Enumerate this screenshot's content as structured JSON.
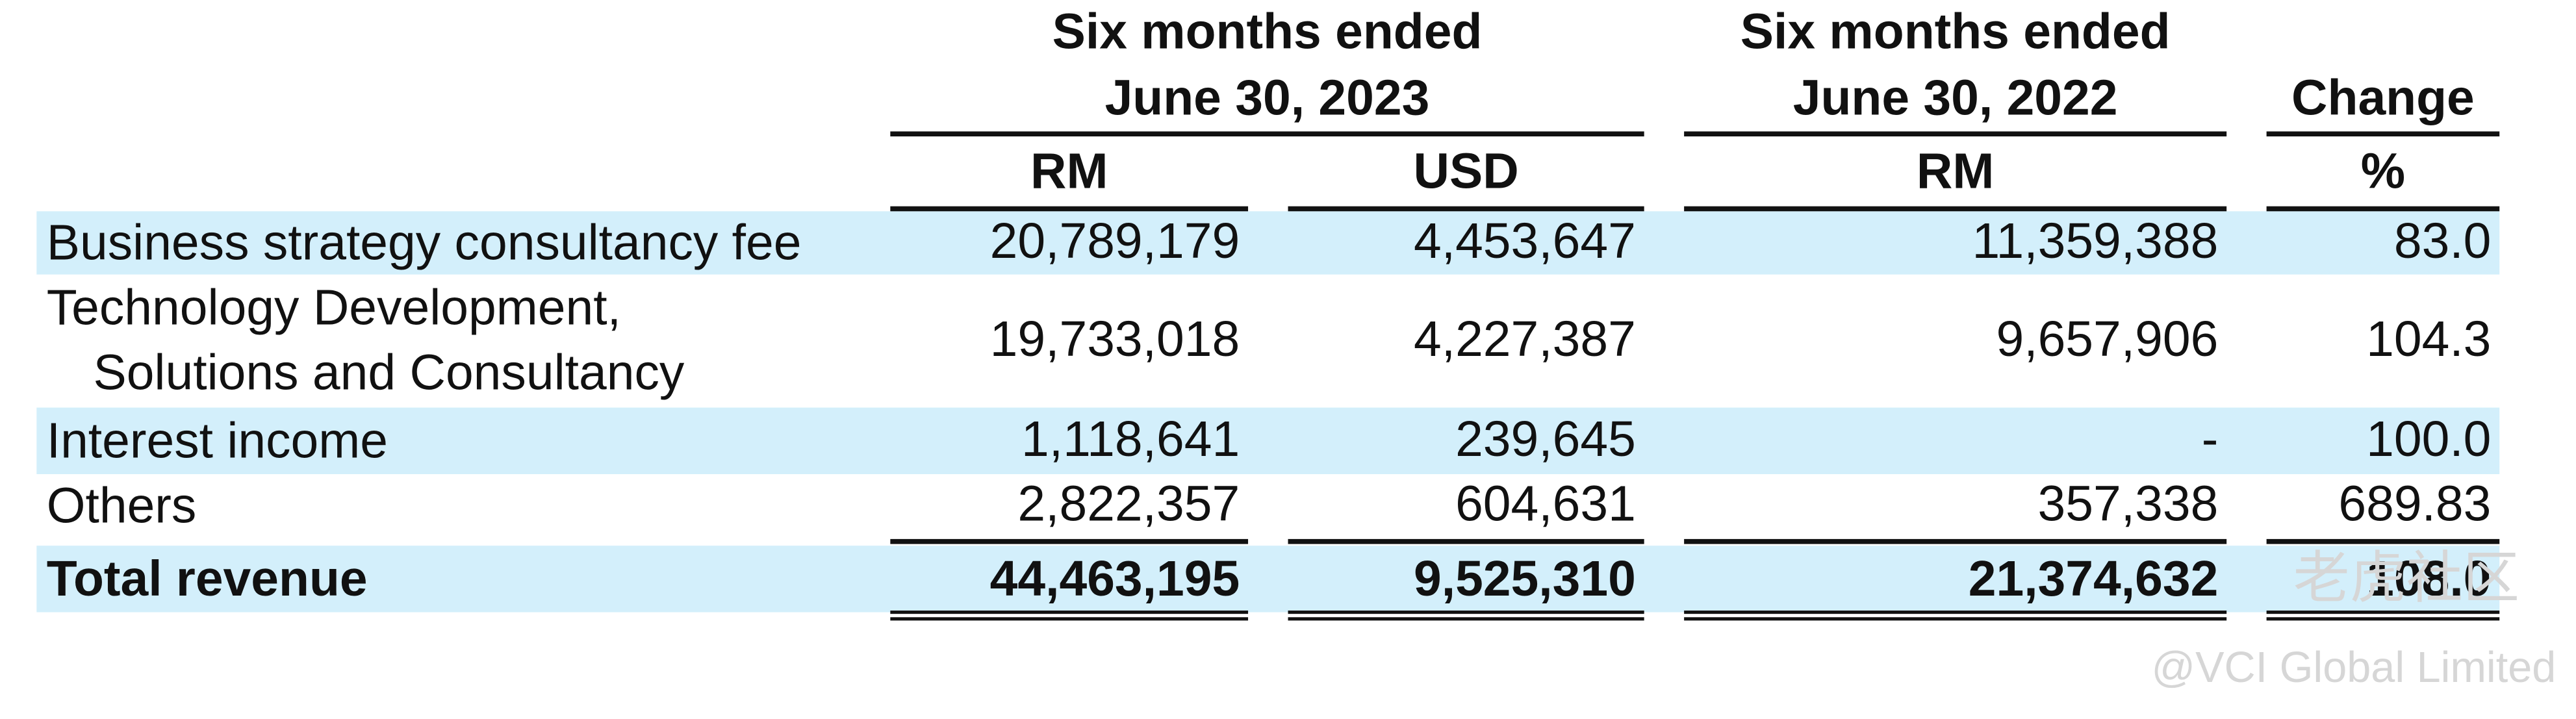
{
  "header": {
    "groups": [
      {
        "lines": [
          "Six months ended",
          "June 30, 2023"
        ]
      },
      {
        "lines": [
          "Six months ended",
          "June 30, 2022"
        ]
      },
      {
        "lines": [
          "Change"
        ]
      }
    ],
    "units": [
      "RM",
      "USD",
      "RM",
      "%"
    ]
  },
  "rows": [
    {
      "label": [
        "Business strategy consultancy fee"
      ],
      "cells": [
        "20,789,179",
        "4,453,647",
        "11,359,388",
        "83.0"
      ]
    },
    {
      "label": [
        "Technology Development,",
        "Solutions and Consultancy"
      ],
      "cells": [
        "19,733,018",
        "4,227,387",
        "9,657,906",
        "104.3"
      ]
    },
    {
      "label": [
        "Interest income"
      ],
      "cells": [
        "1,118,641",
        "239,645",
        "-",
        "100.0"
      ]
    },
    {
      "label": [
        "Others"
      ],
      "cells": [
        "2,822,357",
        "604,631",
        "357,338",
        "689.83"
      ]
    }
  ],
  "total": {
    "label": "Total revenue",
    "cells": [
      "44,463,195",
      "9,525,310",
      "21,374,632",
      "108.0"
    ]
  },
  "watermark": {
    "logo": "老虎社区",
    "credit": "@VCI Global Limited"
  }
}
